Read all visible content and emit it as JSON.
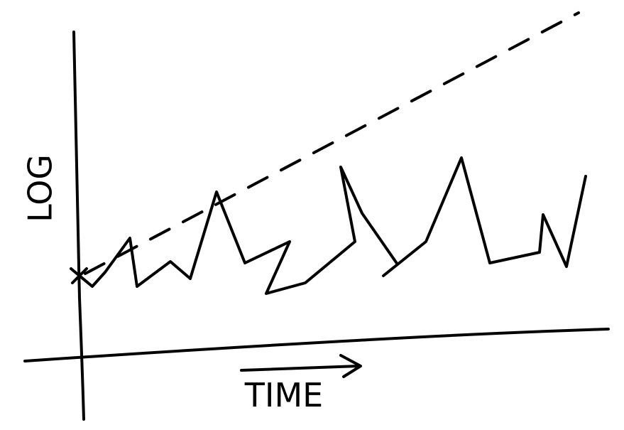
{
  "y_axis_label": "LOG",
  "x_axis_label": "TIME"
}
